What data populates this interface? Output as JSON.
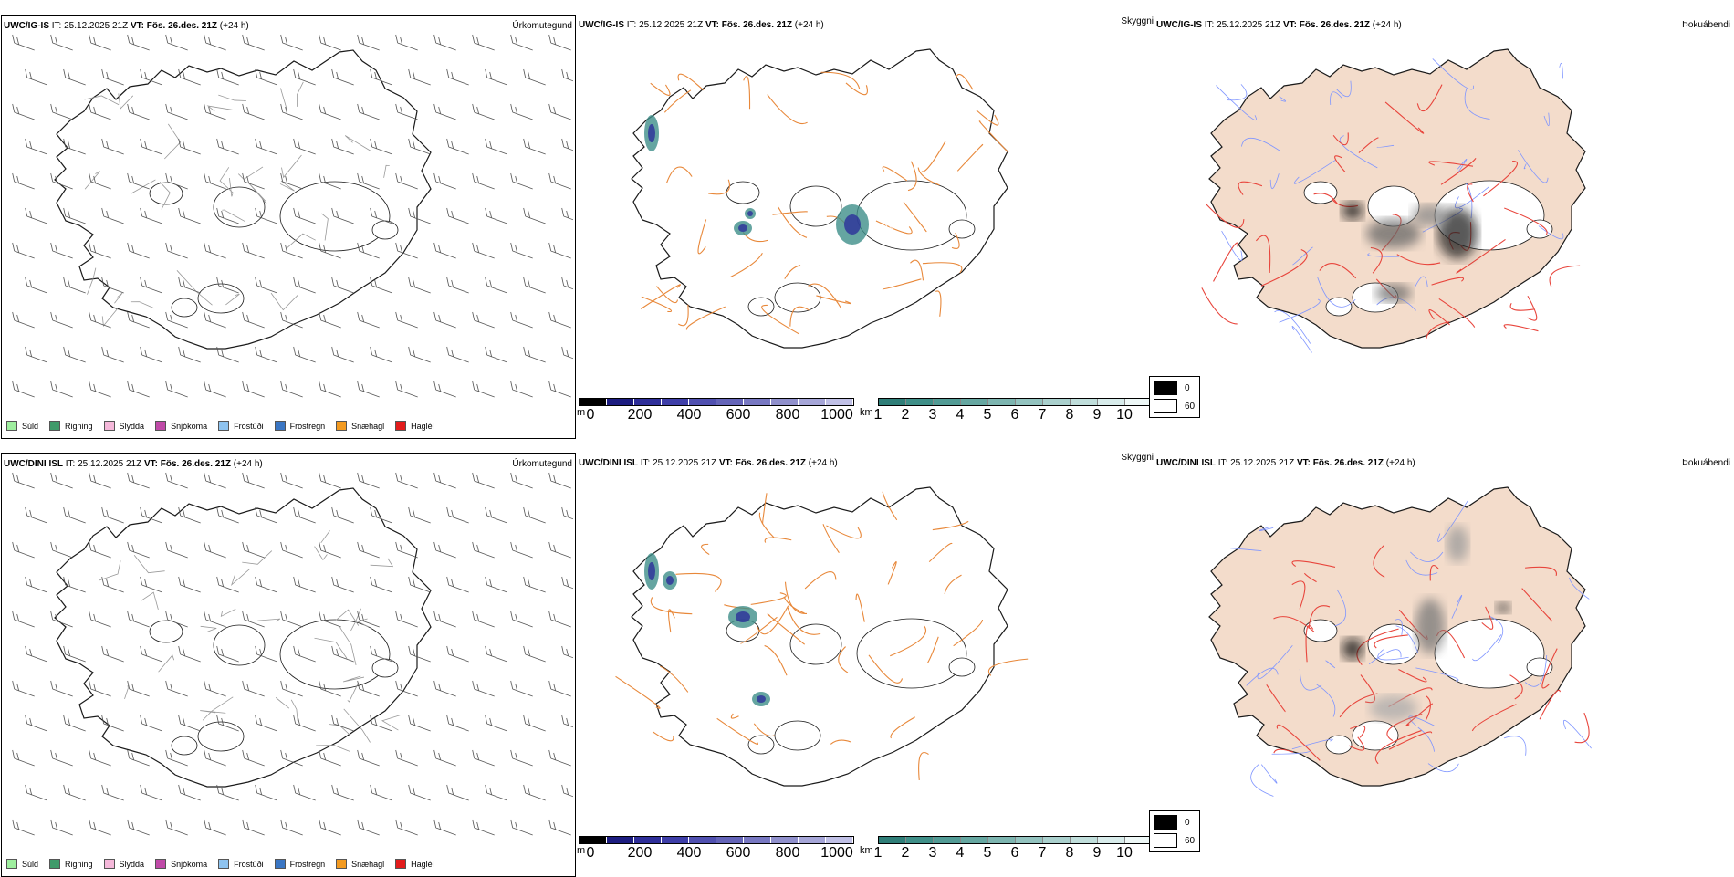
{
  "colors": {
    "coast": "#1a1a1a",
    "barb": "#555555",
    "road": "#e8883a",
    "red_road": "#e8453c",
    "river": "#7f95ff",
    "land_fog": "#f3dccb",
    "cloud_teal": "#3f8f8a",
    "cloud_blue": "#2c2f9a"
  },
  "legend_precip": [
    {
      "label": "Súld",
      "color": "#9fef9f"
    },
    {
      "label": "Rigning",
      "color": "#3f9a6a"
    },
    {
      "label": "Slydda",
      "color": "#f5b8da"
    },
    {
      "label": "Snjókoma",
      "color": "#c04aa8"
    },
    {
      "label": "Frostúði",
      "color": "#8ec3ef"
    },
    {
      "label": "Frostregn",
      "color": "#3a76c4"
    },
    {
      "label": "Snæhagl",
      "color": "#f39a20"
    },
    {
      "label": "Haglél",
      "color": "#e21b1b"
    }
  ],
  "colorbar_height": {
    "unit": "m",
    "ticks": [
      "0",
      "200",
      "400",
      "600",
      "800",
      "1000"
    ],
    "colors": [
      "#000000",
      "#1c1c80",
      "#2e2e99",
      "#3e3ea8",
      "#5050b0",
      "#6464b8",
      "#7878c2",
      "#9090cc",
      "#a6a6d8",
      "#c0c0e6"
    ]
  },
  "colorbar_visibility": {
    "unit": "km",
    "ticks": [
      "1",
      "2",
      "3",
      "4",
      "5",
      "6",
      "7",
      "8",
      "9",
      "10"
    ],
    "colors": [
      "#2f7e78",
      "#3f8f88",
      "#529b95",
      "#66a7a1",
      "#7db5b0",
      "#93c3bf",
      "#aad0cd",
      "#c0dedb",
      "#d8eceb",
      "#eef8f7"
    ]
  },
  "fog_legend": [
    "0",
    "60"
  ],
  "rows": [
    {
      "model": "UWC/IG-IS",
      "it_label": "IT:",
      "it_value": "25.12.2025 21Z",
      "vt_label": "VT:",
      "vt_value": "Fös. 26.des. 21Z",
      "lead": "(+24 h)",
      "titles": {
        "precip": "Úrkomutegund",
        "vis": "Skyggni",
        "fog": "Þokuábendi"
      },
      "vis_marker": "219",
      "vis_marker_small": "12"
    },
    {
      "model": "UWC/DINI ISL",
      "it_label": "IT:",
      "it_value": "25.12.2025 21Z",
      "vt_label": "VT:",
      "vt_value": "Fös. 26.des. 21Z",
      "lead": "(+24 h)",
      "titles": {
        "precip": "Úrkomutegund",
        "vis": "Skyggni",
        "fog": "Þokuábendi"
      },
      "vis_marker": "",
      "vis_marker_small": ""
    }
  ]
}
